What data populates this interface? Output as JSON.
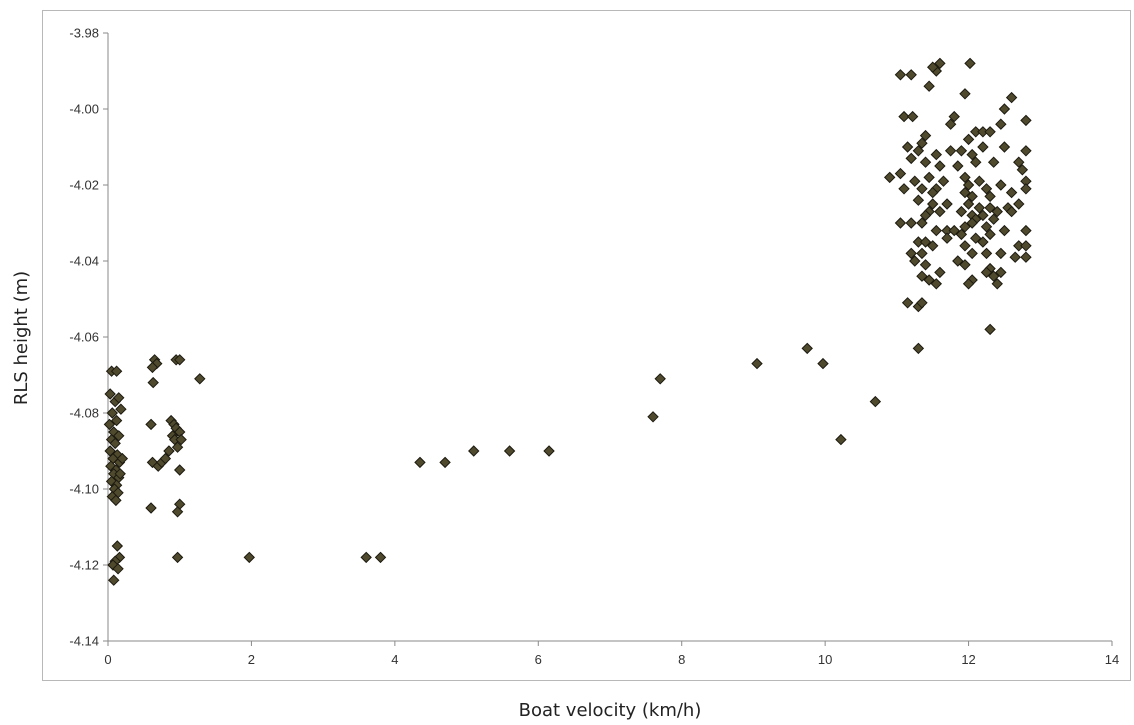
{
  "chart_data": {
    "type": "scatter",
    "title": "",
    "xlabel": "Boat velocity (km/h)",
    "ylabel": "RLS height (m)",
    "xlim": [
      0,
      14
    ],
    "ylim": [
      -4.14,
      -3.98
    ],
    "xticks": [
      0,
      2,
      4,
      6,
      8,
      10,
      12,
      14
    ],
    "xtick_labels": [
      "0",
      "2",
      "4",
      "6",
      "8",
      "10",
      "12",
      "14"
    ],
    "yticks": [
      -3.98,
      -4.0,
      -4.02,
      -4.04,
      -4.06,
      -4.08,
      -4.1,
      -4.12,
      -4.14
    ],
    "ytick_labels": [
      "-3.98",
      "-4.00",
      "-4.02",
      "-4.04",
      "-4.06",
      "-4.08",
      "-4.10",
      "-4.12",
      "-4.14"
    ],
    "grid": false,
    "legend": "none",
    "marker_color": "#4f4a2d",
    "marker_edge": "#1c1a10",
    "series": [
      {
        "points": [
          [
            0.05,
            -4.069
          ],
          [
            0.12,
            -4.069
          ],
          [
            0.03,
            -4.075
          ],
          [
            0.1,
            -4.077
          ],
          [
            0.15,
            -4.076
          ],
          [
            0.06,
            -4.08
          ],
          [
            0.12,
            -4.082
          ],
          [
            0.02,
            -4.083
          ],
          [
            0.08,
            -4.085
          ],
          [
            0.15,
            -4.086
          ],
          [
            0.05,
            -4.087
          ],
          [
            0.1,
            -4.088
          ],
          [
            0.03,
            -4.09
          ],
          [
            0.13,
            -4.091
          ],
          [
            0.07,
            -4.092
          ],
          [
            0.16,
            -4.093
          ],
          [
            0.04,
            -4.094
          ],
          [
            0.11,
            -4.095
          ],
          [
            0.08,
            -4.096
          ],
          [
            0.15,
            -4.097
          ],
          [
            0.05,
            -4.098
          ],
          [
            0.12,
            -4.099
          ],
          [
            0.09,
            -4.1
          ],
          [
            0.14,
            -4.101
          ],
          [
            0.06,
            -4.102
          ],
          [
            0.11,
            -4.103
          ],
          [
            0.17,
            -4.096
          ],
          [
            0.13,
            -4.115
          ],
          [
            0.16,
            -4.118
          ],
          [
            0.1,
            -4.119
          ],
          [
            0.07,
            -4.12
          ],
          [
            0.14,
            -4.121
          ],
          [
            0.08,
            -4.124
          ],
          [
            0.2,
            -4.092
          ],
          [
            0.18,
            -4.079
          ],
          [
            0.65,
            -4.066
          ],
          [
            0.68,
            -4.067
          ],
          [
            0.62,
            -4.068
          ],
          [
            0.63,
            -4.072
          ],
          [
            0.6,
            -4.083
          ],
          [
            0.62,
            -4.093
          ],
          [
            0.7,
            -4.094
          ],
          [
            0.75,
            -4.093
          ],
          [
            0.8,
            -4.092
          ],
          [
            0.85,
            -4.09
          ],
          [
            0.88,
            -4.082
          ],
          [
            0.92,
            -4.083
          ],
          [
            0.95,
            -4.084
          ],
          [
            0.9,
            -4.086
          ],
          [
            0.93,
            -4.087
          ],
          [
            1.0,
            -4.085
          ],
          [
            1.02,
            -4.087
          ],
          [
            0.97,
            -4.089
          ],
          [
            0.95,
            -4.066
          ],
          [
            1.0,
            -4.066
          ],
          [
            1.28,
            -4.071
          ],
          [
            1.0,
            -4.095
          ],
          [
            1.0,
            -4.104
          ],
          [
            0.97,
            -4.106
          ],
          [
            0.6,
            -4.105
          ],
          [
            0.97,
            -4.118
          ],
          [
            1.97,
            -4.118
          ],
          [
            3.6,
            -4.118
          ],
          [
            3.8,
            -4.118
          ],
          [
            4.35,
            -4.093
          ],
          [
            4.7,
            -4.093
          ],
          [
            5.1,
            -4.09
          ],
          [
            5.6,
            -4.09
          ],
          [
            6.15,
            -4.09
          ],
          [
            7.6,
            -4.081
          ],
          [
            7.7,
            -4.071
          ],
          [
            9.05,
            -4.067
          ],
          [
            9.75,
            -4.063
          ],
          [
            9.97,
            -4.067
          ],
          [
            10.22,
            -4.087
          ],
          [
            10.7,
            -4.077
          ],
          [
            11.05,
            -3.991
          ],
          [
            11.2,
            -3.991
          ],
          [
            11.55,
            -3.99
          ],
          [
            11.6,
            -3.988
          ],
          [
            11.5,
            -3.989
          ],
          [
            12.02,
            -3.988
          ],
          [
            11.45,
            -3.994
          ],
          [
            11.95,
            -3.996
          ],
          [
            12.6,
            -3.997
          ],
          [
            12.5,
            -4.0
          ],
          [
            11.1,
            -4.002
          ],
          [
            11.22,
            -4.002
          ],
          [
            11.8,
            -4.002
          ],
          [
            11.75,
            -4.004
          ],
          [
            12.45,
            -4.004
          ],
          [
            12.1,
            -4.006
          ],
          [
            12.2,
            -4.006
          ],
          [
            12.3,
            -4.006
          ],
          [
            11.4,
            -4.007
          ],
          [
            11.35,
            -4.009
          ],
          [
            12.0,
            -4.008
          ],
          [
            12.8,
            -4.003
          ],
          [
            11.15,
            -4.01
          ],
          [
            11.3,
            -4.011
          ],
          [
            11.55,
            -4.012
          ],
          [
            11.75,
            -4.011
          ],
          [
            11.9,
            -4.011
          ],
          [
            12.05,
            -4.012
          ],
          [
            12.2,
            -4.01
          ],
          [
            12.5,
            -4.01
          ],
          [
            12.8,
            -4.011
          ],
          [
            11.2,
            -4.013
          ],
          [
            11.4,
            -4.014
          ],
          [
            11.6,
            -4.015
          ],
          [
            11.85,
            -4.015
          ],
          [
            12.1,
            -4.014
          ],
          [
            12.35,
            -4.014
          ],
          [
            12.7,
            -4.014
          ],
          [
            10.9,
            -4.018
          ],
          [
            11.05,
            -4.017
          ],
          [
            11.25,
            -4.019
          ],
          [
            11.45,
            -4.018
          ],
          [
            11.55,
            -4.021
          ],
          [
            11.65,
            -4.019
          ],
          [
            11.95,
            -4.018
          ],
          [
            12.0,
            -4.02
          ],
          [
            12.15,
            -4.019
          ],
          [
            12.25,
            -4.021
          ],
          [
            12.45,
            -4.02
          ],
          [
            12.75,
            -4.016
          ],
          [
            12.8,
            -4.019
          ],
          [
            11.1,
            -4.021
          ],
          [
            11.35,
            -4.021
          ],
          [
            11.5,
            -4.022
          ],
          [
            11.95,
            -4.022
          ],
          [
            12.05,
            -4.023
          ],
          [
            12.3,
            -4.023
          ],
          [
            12.6,
            -4.022
          ],
          [
            12.8,
            -4.021
          ],
          [
            11.3,
            -4.024
          ],
          [
            11.5,
            -4.025
          ],
          [
            11.7,
            -4.025
          ],
          [
            12.0,
            -4.025
          ],
          [
            12.15,
            -4.026
          ],
          [
            12.3,
            -4.026
          ],
          [
            12.55,
            -4.026
          ],
          [
            12.7,
            -4.025
          ],
          [
            11.45,
            -4.027
          ],
          [
            11.6,
            -4.027
          ],
          [
            11.9,
            -4.027
          ],
          [
            12.05,
            -4.028
          ],
          [
            12.2,
            -4.028
          ],
          [
            12.4,
            -4.027
          ],
          [
            12.6,
            -4.027
          ],
          [
            11.4,
            -4.028
          ],
          [
            12.1,
            -4.029
          ],
          [
            12.35,
            -4.029
          ],
          [
            11.05,
            -4.03
          ],
          [
            11.2,
            -4.03
          ],
          [
            11.35,
            -4.03
          ],
          [
            12.05,
            -4.03
          ],
          [
            12.25,
            -4.031
          ],
          [
            11.55,
            -4.032
          ],
          [
            11.7,
            -4.032
          ],
          [
            11.8,
            -4.032
          ],
          [
            11.9,
            -4.033
          ],
          [
            11.95,
            -4.031
          ],
          [
            12.3,
            -4.033
          ],
          [
            12.5,
            -4.032
          ],
          [
            12.8,
            -4.032
          ],
          [
            11.3,
            -4.035
          ],
          [
            11.4,
            -4.035
          ],
          [
            11.7,
            -4.034
          ],
          [
            12.1,
            -4.034
          ],
          [
            12.2,
            -4.035
          ],
          [
            11.5,
            -4.036
          ],
          [
            11.95,
            -4.036
          ],
          [
            12.7,
            -4.036
          ],
          [
            12.8,
            -4.036
          ],
          [
            11.2,
            -4.038
          ],
          [
            11.35,
            -4.038
          ],
          [
            12.05,
            -4.038
          ],
          [
            12.25,
            -4.038
          ],
          [
            12.45,
            -4.038
          ],
          [
            12.65,
            -4.039
          ],
          [
            12.8,
            -4.039
          ],
          [
            11.25,
            -4.04
          ],
          [
            11.4,
            -4.041
          ],
          [
            11.85,
            -4.04
          ],
          [
            11.6,
            -4.043
          ],
          [
            11.95,
            -4.041
          ],
          [
            12.3,
            -4.042
          ],
          [
            12.45,
            -4.043
          ],
          [
            11.35,
            -4.044
          ],
          [
            11.45,
            -4.045
          ],
          [
            12.05,
            -4.045
          ],
          [
            12.25,
            -4.043
          ],
          [
            12.35,
            -4.044
          ],
          [
            12.0,
            -4.046
          ],
          [
            12.4,
            -4.046
          ],
          [
            11.55,
            -4.046
          ],
          [
            11.15,
            -4.051
          ],
          [
            11.3,
            -4.052
          ],
          [
            11.35,
            -4.051
          ],
          [
            12.3,
            -4.058
          ],
          [
            11.3,
            -4.063
          ]
        ]
      }
    ]
  }
}
